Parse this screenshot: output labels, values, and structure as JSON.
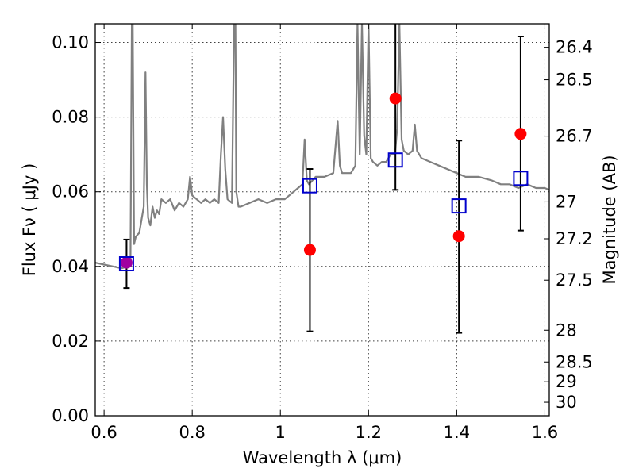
{
  "chart_data": {
    "type": "scatter",
    "title": "",
    "xlabel": "Wavelength  λ (μm)",
    "ylabel": "Flux  Fν  ( μJy )",
    "y2label": "Magnitude (AB)",
    "xlim": [
      0.58,
      1.61
    ],
    "ylim": [
      0.0,
      0.105
    ],
    "x_ticks": [
      "0.6",
      "0.8",
      "1",
      "1.2",
      "1.4",
      "1.6"
    ],
    "x_tick_values": [
      0.6,
      0.8,
      1.0,
      1.2,
      1.4,
      1.6
    ],
    "y_ticks": [
      "0.00",
      "0.02",
      "0.04",
      "0.06",
      "0.08",
      "0.10"
    ],
    "y_tick_values": [
      0.0,
      0.02,
      0.04,
      0.06,
      0.08,
      0.1
    ],
    "y2_ticks": [
      "26.4",
      "26.5",
      "26.7",
      "27",
      "27.2",
      "27.5",
      "28",
      "28.5",
      "29",
      "30"
    ],
    "y2_tick_flux": [
      0.0987,
      0.09,
      0.0749,
      0.0573,
      0.0474,
      0.0363,
      0.0229,
      0.0144,
      0.0091,
      0.0036
    ],
    "grid": true,
    "colors": {
      "model": "#808080",
      "red_points": "#ff0000",
      "blue_squares": "#0000cc",
      "errorbars": "#000000",
      "overlap_point": "#a000a0"
    },
    "series": [
      {
        "kind": "line",
        "x": [
          0.58,
          0.6,
          0.62,
          0.64,
          0.655,
          0.66,
          0.663,
          0.665,
          0.668,
          0.672,
          0.68,
          0.69,
          0.694,
          0.697,
          0.7,
          0.705,
          0.71,
          0.715,
          0.72,
          0.725,
          0.73,
          0.74,
          0.75,
          0.76,
          0.77,
          0.78,
          0.79,
          0.795,
          0.8,
          0.81,
          0.82,
          0.83,
          0.84,
          0.85,
          0.86,
          0.865,
          0.87,
          0.875,
          0.88,
          0.89,
          0.895,
          0.898,
          0.9,
          0.905,
          0.91,
          0.93,
          0.95,
          0.97,
          0.99,
          1.0,
          1.01,
          1.02,
          1.03,
          1.04,
          1.05,
          1.055,
          1.06,
          1.065,
          1.08,
          1.1,
          1.12,
          1.13,
          1.135,
          1.14,
          1.15,
          1.16,
          1.17,
          1.175,
          1.18,
          1.185,
          1.19,
          1.195,
          1.2,
          1.205,
          1.21,
          1.22,
          1.23,
          1.24,
          1.25,
          1.26,
          1.265,
          1.27,
          1.275,
          1.28,
          1.29,
          1.3,
          1.305,
          1.31,
          1.32,
          1.34,
          1.36,
          1.38,
          1.4,
          1.42,
          1.45,
          1.48,
          1.5,
          1.52,
          1.54,
          1.56,
          1.58,
          1.6,
          1.61
        ],
        "y": [
          0.041,
          0.0405,
          0.04,
          0.0395,
          0.04,
          0.042,
          0.105,
          0.105,
          0.046,
          0.048,
          0.049,
          0.056,
          0.092,
          0.062,
          0.053,
          0.051,
          0.056,
          0.053,
          0.055,
          0.054,
          0.058,
          0.057,
          0.058,
          0.055,
          0.057,
          0.056,
          0.058,
          0.064,
          0.059,
          0.058,
          0.057,
          0.058,
          0.057,
          0.058,
          0.057,
          0.07,
          0.08,
          0.066,
          0.058,
          0.057,
          0.105,
          0.105,
          0.06,
          0.056,
          0.056,
          0.057,
          0.058,
          0.057,
          0.058,
          0.058,
          0.058,
          0.059,
          0.06,
          0.061,
          0.062,
          0.074,
          0.063,
          0.062,
          0.064,
          0.064,
          0.065,
          0.079,
          0.067,
          0.065,
          0.065,
          0.065,
          0.067,
          0.105,
          0.07,
          0.105,
          0.075,
          0.07,
          0.105,
          0.069,
          0.068,
          0.067,
          0.068,
          0.068,
          0.07,
          0.07,
          0.077,
          0.105,
          0.074,
          0.071,
          0.07,
          0.071,
          0.078,
          0.071,
          0.069,
          0.068,
          0.067,
          0.066,
          0.065,
          0.064,
          0.064,
          0.063,
          0.062,
          0.062,
          0.061,
          0.062,
          0.061,
          0.061,
          0.0605
        ]
      },
      {
        "kind": "errorbar",
        "x": [
          0.651,
          1.067,
          1.261,
          1.405,
          1.545
        ],
        "y": [
          0.0407,
          0.0616,
          0.0685,
          0.0562,
          0.0636
        ],
        "yerr_low": [
          0.0065,
          0.039,
          0.008,
          0.034,
          0.014
        ],
        "yerr_high": [
          0.0065,
          0.0045,
          0.038,
          0.0175,
          0.038
        ]
      },
      {
        "kind": "squares",
        "x": [
          0.651,
          1.067,
          1.261,
          1.405,
          1.545
        ],
        "y": [
          0.0407,
          0.0616,
          0.0685,
          0.0562,
          0.0636
        ]
      },
      {
        "kind": "points",
        "x": [
          0.651,
          1.067,
          1.261,
          1.405,
          1.545
        ],
        "y": [
          0.041,
          0.0444,
          0.085,
          0.0481,
          0.0755
        ]
      }
    ]
  }
}
